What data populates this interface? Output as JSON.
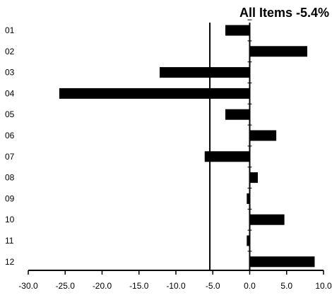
{
  "chart_data": {
    "type": "bar",
    "orientation": "horizontal",
    "title": "All Items -5.4%",
    "categories": [
      "01",
      "02",
      "03",
      "04",
      "05",
      "06",
      "07",
      "08",
      "09",
      "10",
      "11",
      "12"
    ],
    "values": [
      -3.3,
      7.8,
      -12.2,
      -25.8,
      -3.3,
      3.6,
      -6.1,
      1.1,
      -0.4,
      4.7,
      -0.4,
      8.8
    ],
    "reference_line": {
      "value": -5.4
    },
    "xlim": [
      -30,
      10
    ],
    "xticks": [
      -30,
      -25,
      -20,
      -15,
      -10,
      -5,
      0,
      5,
      10
    ],
    "tick_labels": [
      "-30.0",
      "-25.0",
      "-20.0",
      "-15.0",
      "-10.0",
      "-5.0",
      "0.0",
      "5.0",
      "10.0"
    ],
    "xlabel": "",
    "ylabel": "",
    "grid": false,
    "legend": "none",
    "bar_color": "#000000"
  }
}
